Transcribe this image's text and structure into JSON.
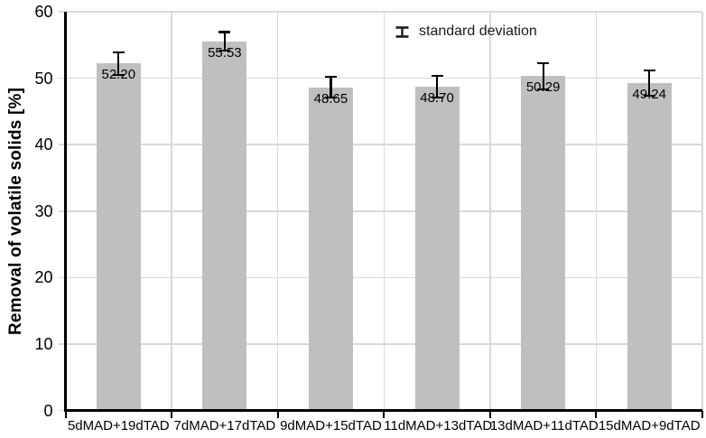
{
  "chart_data": {
    "type": "bar",
    "title": "",
    "xlabel": "",
    "ylabel": "Removal of volatile solids [%]",
    "ylim": [
      0,
      60
    ],
    "yticks": [
      0,
      10,
      20,
      30,
      40,
      50,
      60
    ],
    "grid": "horizontal gridlines every 10, vertical gridlines between categories",
    "legend": {
      "label": "standard deviation",
      "icon": "error-bar-icon",
      "position": "top-center"
    },
    "categories": [
      "5dMAD+19dTAD",
      "7dMAD+17dTAD",
      "9dMAD+15dTAD",
      "11dMAD+13dTAD",
      "13dMAD+11dTAD",
      "15dMAD+9dTAD"
    ],
    "values": [
      52.2,
      55.53,
      48.65,
      48.7,
      50.29,
      49.24
    ],
    "value_labels": [
      "52.20",
      "55.53",
      "48.65",
      "48.70",
      "50.29",
      "49.24"
    ],
    "std_dev": [
      1.7,
      1.4,
      1.6,
      1.6,
      2.0,
      1.9
    ],
    "colors": {
      "bar": "#bfbfbf",
      "gridline": "#d9d9d9",
      "axis": "#000000",
      "error_bar": "#000000",
      "text": "#000000",
      "background": "#ffffff"
    }
  }
}
